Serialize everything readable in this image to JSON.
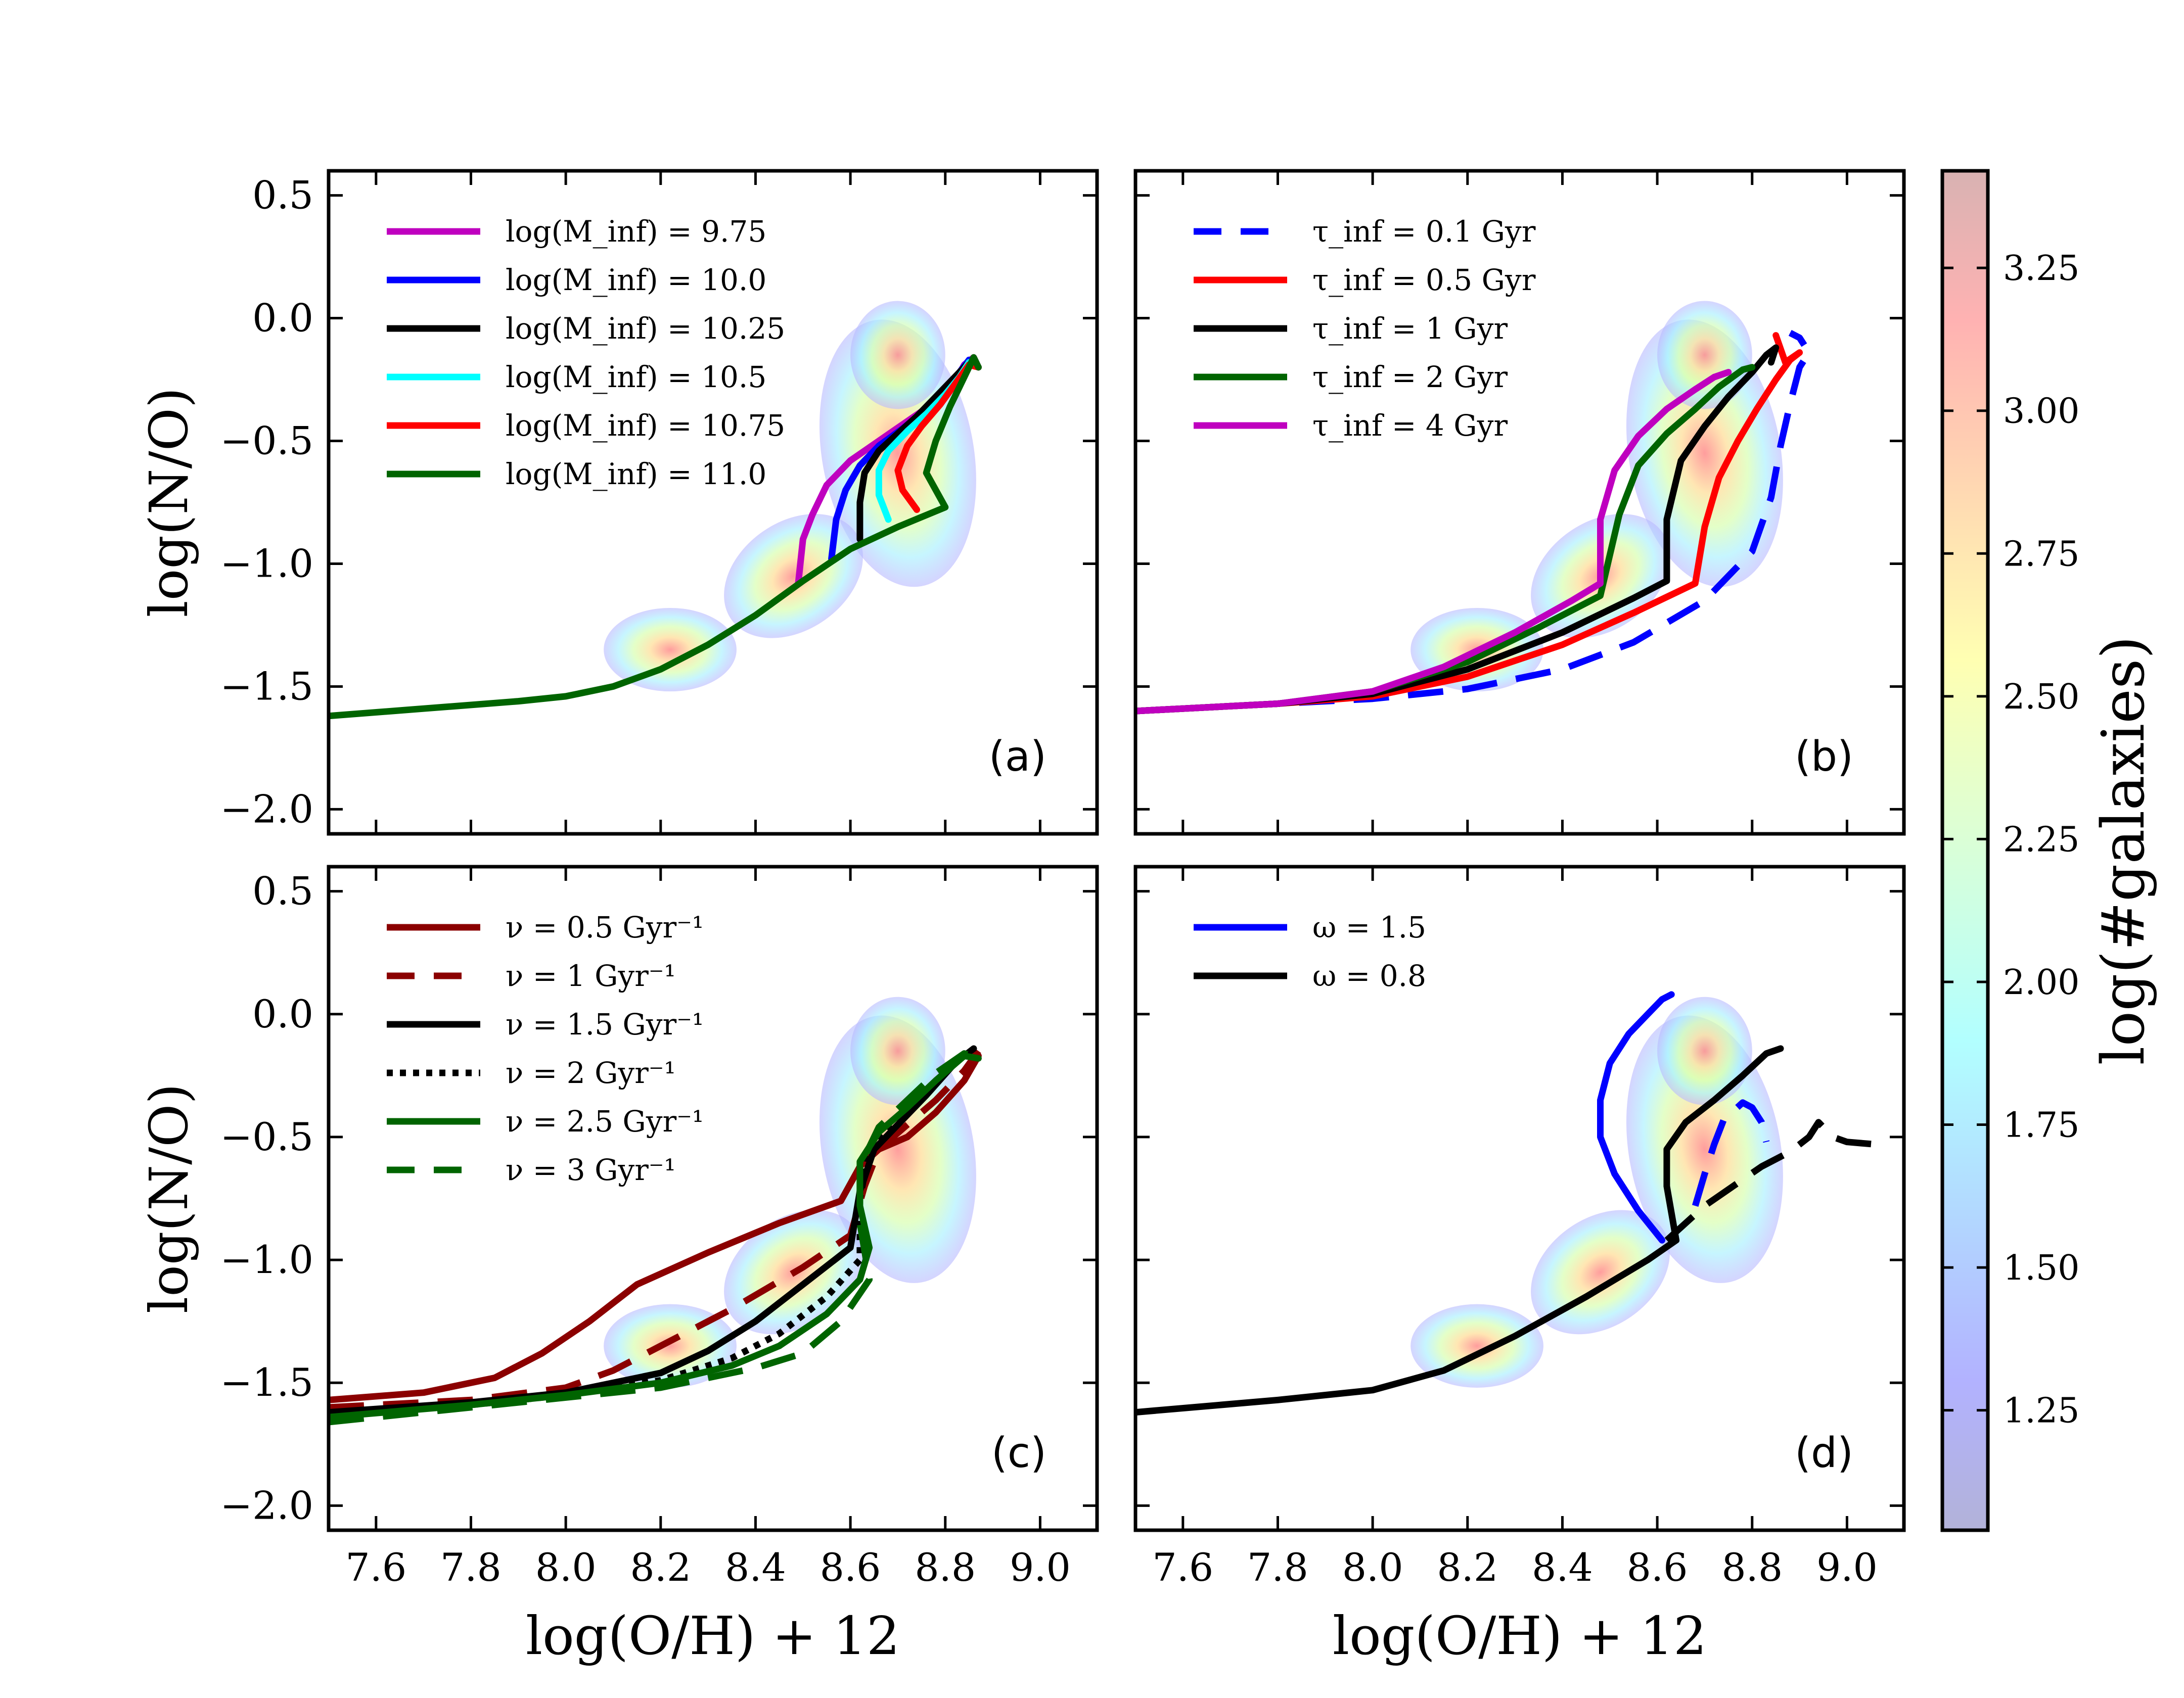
{
  "chart_data": [
    {
      "type": "line",
      "panel_label": "(a)",
      "xlabel": "",
      "ylabel": "log(N/O)",
      "xlim": [
        7.5,
        9.12
      ],
      "ylim": [
        -2.1,
        0.6
      ],
      "yticks": [
        "0.5",
        "0.0",
        "−0.5",
        "−1.0",
        "−1.5",
        "−2.0"
      ],
      "xticks": [],
      "legend_position": "top-left",
      "series": [
        {
          "name": "log(M_inf) = 9.75",
          "color": "#bf00bf",
          "style": "solid",
          "x": [
            8.49,
            8.5,
            8.52,
            8.55,
            8.6,
            8.66,
            8.72,
            8.78,
            8.82,
            8.84,
            8.86,
            8.87
          ],
          "y": [
            -1.08,
            -0.9,
            -0.8,
            -0.68,
            -0.58,
            -0.5,
            -0.42,
            -0.34,
            -0.26,
            -0.19,
            -0.16,
            -0.2
          ]
        },
        {
          "name": "log(M_inf) = 10.0",
          "color": "#0000ff",
          "style": "solid",
          "x": [
            8.56,
            8.57,
            8.59,
            8.62,
            8.66,
            8.71,
            8.76,
            8.8,
            8.83,
            8.85,
            8.87
          ],
          "y": [
            -0.98,
            -0.82,
            -0.7,
            -0.6,
            -0.52,
            -0.45,
            -0.37,
            -0.29,
            -0.22,
            -0.17,
            -0.2
          ]
        },
        {
          "name": "log(M_inf) = 10.25",
          "color": "#000000",
          "style": "solid",
          "x": [
            8.62,
            8.62,
            8.63,
            8.66,
            8.7,
            8.74,
            8.78,
            8.82,
            8.85,
            8.87
          ],
          "y": [
            -0.9,
            -0.75,
            -0.63,
            -0.54,
            -0.47,
            -0.4,
            -0.32,
            -0.24,
            -0.18,
            -0.2
          ]
        },
        {
          "name": "log(M_inf) = 10.5",
          "color": "#00ffff",
          "style": "solid",
          "x": [
            8.68,
            8.66,
            8.66,
            8.68,
            8.72,
            8.76,
            8.8,
            8.83,
            8.85,
            8.87
          ],
          "y": [
            -0.82,
            -0.72,
            -0.62,
            -0.54,
            -0.46,
            -0.39,
            -0.31,
            -0.24,
            -0.18,
            -0.2
          ]
        },
        {
          "name": "log(M_inf) = 10.75",
          "color": "#ff0000",
          "style": "solid",
          "x": [
            8.74,
            8.71,
            8.7,
            8.72,
            8.75,
            8.79,
            8.82,
            8.85,
            8.87
          ],
          "y": [
            -0.78,
            -0.7,
            -0.62,
            -0.52,
            -0.44,
            -0.35,
            -0.27,
            -0.19,
            -0.2
          ]
        },
        {
          "name": "log(M_inf) = 11.0",
          "color": "#006400",
          "style": "solid",
          "x": [
            7.5,
            7.7,
            7.9,
            8.0,
            8.1,
            8.2,
            8.3,
            8.4,
            8.5,
            8.6,
            8.7,
            8.8,
            8.76,
            8.78,
            8.81,
            8.84,
            8.86,
            8.87
          ],
          "y": [
            -1.62,
            -1.59,
            -1.56,
            -1.54,
            -1.5,
            -1.43,
            -1.33,
            -1.21,
            -1.07,
            -0.94,
            -0.85,
            -0.77,
            -0.63,
            -0.5,
            -0.36,
            -0.24,
            -0.16,
            -0.2
          ]
        }
      ]
    },
    {
      "type": "line",
      "panel_label": "(b)",
      "xlabel": "",
      "ylabel": "",
      "xlim": [
        7.5,
        9.12
      ],
      "ylim": [
        -2.1,
        0.6
      ],
      "xticks": [],
      "yticks": [],
      "legend_position": "top-left",
      "series": [
        {
          "name": "τ_inf = 0.1 Gyr",
          "color": "#0000ff",
          "style": "dashed",
          "x": [
            7.5,
            7.8,
            8.0,
            8.2,
            8.4,
            8.55,
            8.7,
            8.8,
            8.84,
            8.86,
            8.88,
            8.9,
            8.92,
            8.9,
            8.88
          ],
          "y": [
            -1.6,
            -1.57,
            -1.55,
            -1.51,
            -1.43,
            -1.32,
            -1.15,
            -0.95,
            -0.73,
            -0.52,
            -0.35,
            -0.2,
            -0.14,
            -0.08,
            -0.06
          ]
        },
        {
          "name": "τ_inf = 0.5 Gyr",
          "color": "#ff0000",
          "style": "solid",
          "x": [
            7.5,
            7.8,
            8.0,
            8.2,
            8.4,
            8.55,
            8.68,
            8.7,
            8.73,
            8.77,
            8.81,
            8.85,
            8.88,
            8.9,
            8.87,
            8.85
          ],
          "y": [
            -1.6,
            -1.57,
            -1.54,
            -1.46,
            -1.33,
            -1.2,
            -1.08,
            -0.85,
            -0.65,
            -0.5,
            -0.37,
            -0.25,
            -0.17,
            -0.14,
            -0.18,
            -0.07
          ]
        },
        {
          "name": "τ_inf = 1 Gyr",
          "color": "#000000",
          "style": "solid",
          "x": [
            7.5,
            7.8,
            8.0,
            8.2,
            8.4,
            8.55,
            8.62,
            8.62,
            8.65,
            8.7,
            8.75,
            8.8,
            8.83,
            8.85,
            8.84
          ],
          "y": [
            -1.6,
            -1.57,
            -1.53,
            -1.43,
            -1.28,
            -1.14,
            -1.07,
            -0.82,
            -0.58,
            -0.44,
            -0.32,
            -0.22,
            -0.15,
            -0.12,
            -0.18
          ]
        },
        {
          "name": "τ_inf = 2 Gyr",
          "color": "#006400",
          "style": "solid",
          "x": [
            7.5,
            7.8,
            8.0,
            8.2,
            8.35,
            8.48,
            8.52,
            8.56,
            8.62,
            8.68,
            8.73,
            8.78,
            8.8
          ],
          "y": [
            -1.6,
            -1.57,
            -1.52,
            -1.4,
            -1.26,
            -1.13,
            -0.8,
            -0.6,
            -0.47,
            -0.37,
            -0.28,
            -0.21,
            -0.2
          ]
        },
        {
          "name": "τ_inf = 4 Gyr",
          "color": "#bf00bf",
          "style": "solid",
          "x": [
            7.5,
            7.8,
            8.0,
            8.15,
            8.3,
            8.42,
            8.48,
            8.48,
            8.51,
            8.56,
            8.62,
            8.68,
            8.72,
            8.75
          ],
          "y": [
            -1.6,
            -1.57,
            -1.52,
            -1.42,
            -1.28,
            -1.15,
            -1.08,
            -0.82,
            -0.62,
            -0.48,
            -0.37,
            -0.29,
            -0.24,
            -0.22
          ]
        }
      ]
    },
    {
      "type": "line",
      "panel_label": "(c)",
      "xlabel": "log(O/H) + 12",
      "ylabel": "log(N/O)",
      "xlim": [
        7.5,
        9.12
      ],
      "ylim": [
        -2.1,
        0.6
      ],
      "xticks": [
        "7.6",
        "7.8",
        "8.0",
        "8.2",
        "8.4",
        "8.6",
        "8.8",
        "9.0"
      ],
      "yticks": [
        "0.5",
        "0.0",
        "−0.5",
        "−1.0",
        "−1.5",
        "−2.0"
      ],
      "legend_position": "top-left",
      "series": [
        {
          "name": "ν = 0.5 Gyr⁻¹",
          "color": "#8b0000",
          "style": "solid",
          "x": [
            7.5,
            7.7,
            7.85,
            7.95,
            8.05,
            8.15,
            8.3,
            8.45,
            8.58,
            8.62,
            8.66,
            8.72,
            8.78,
            8.84,
            8.87
          ],
          "y": [
            -1.57,
            -1.54,
            -1.48,
            -1.38,
            -1.25,
            -1.1,
            -0.97,
            -0.85,
            -0.76,
            -0.62,
            -0.55,
            -0.5,
            -0.4,
            -0.27,
            -0.17
          ]
        },
        {
          "name": "ν = 1 Gyr⁻¹",
          "color": "#8b0000",
          "style": "dashed",
          "x": [
            7.5,
            7.8,
            8.0,
            8.1,
            8.2,
            8.35,
            8.5,
            8.6,
            8.63,
            8.66,
            8.72,
            8.78,
            8.84,
            8.87
          ],
          "y": [
            -1.6,
            -1.57,
            -1.52,
            -1.45,
            -1.35,
            -1.2,
            -1.03,
            -0.9,
            -0.7,
            -0.55,
            -0.45,
            -0.35,
            -0.23,
            -0.15
          ]
        },
        {
          "name": "ν = 1.5 Gyr⁻¹",
          "color": "#000000",
          "style": "solid",
          "x": [
            7.5,
            7.8,
            8.0,
            8.2,
            8.3,
            8.4,
            8.5,
            8.6,
            8.62,
            8.65,
            8.7,
            8.76,
            8.82,
            8.86
          ],
          "y": [
            -1.62,
            -1.58,
            -1.54,
            -1.46,
            -1.37,
            -1.25,
            -1.1,
            -0.95,
            -0.72,
            -0.55,
            -0.45,
            -0.33,
            -0.2,
            -0.14
          ]
        },
        {
          "name": "ν = 2 Gyr⁻¹",
          "color": "#000000",
          "style": "dotted",
          "x": [
            7.5,
            7.8,
            8.0,
            8.2,
            8.35,
            8.45,
            8.55,
            8.62,
            8.62,
            8.64,
            8.7,
            8.76,
            8.82,
            8.86
          ],
          "y": [
            -1.63,
            -1.59,
            -1.55,
            -1.49,
            -1.4,
            -1.3,
            -1.15,
            -1.0,
            -0.75,
            -0.55,
            -0.43,
            -0.32,
            -0.2,
            -0.14
          ]
        },
        {
          "name": "ν = 2.5 Gyr⁻¹",
          "color": "#006400",
          "style": "solid",
          "x": [
            7.5,
            7.8,
            8.0,
            8.2,
            8.35,
            8.45,
            8.55,
            8.62,
            8.64,
            8.62,
            8.62,
            8.66,
            8.72,
            8.78,
            8.84,
            8.87
          ],
          "y": [
            -1.64,
            -1.59,
            -1.55,
            -1.5,
            -1.43,
            -1.35,
            -1.22,
            -1.08,
            -0.95,
            -0.78,
            -0.6,
            -0.48,
            -0.38,
            -0.27,
            -0.17,
            -0.18
          ]
        },
        {
          "name": "ν = 3 Gyr⁻¹",
          "color": "#006400",
          "style": "dashed",
          "x": [
            7.5,
            7.8,
            8.0,
            8.2,
            8.4,
            8.5,
            8.58,
            8.64,
            8.62,
            8.62,
            8.66,
            8.72,
            8.78,
            8.84,
            8.87
          ],
          "y": [
            -1.66,
            -1.6,
            -1.56,
            -1.52,
            -1.44,
            -1.38,
            -1.25,
            -1.08,
            -0.85,
            -0.62,
            -0.46,
            -0.35,
            -0.24,
            -0.16,
            -0.18
          ]
        }
      ]
    },
    {
      "type": "line",
      "panel_label": "(d)",
      "xlabel": "log(O/H) + 12",
      "ylabel": "",
      "xlim": [
        7.5,
        9.12
      ],
      "ylim": [
        -2.1,
        0.6
      ],
      "xticks": [
        "7.6",
        "7.8",
        "8.0",
        "8.2",
        "8.4",
        "8.6",
        "8.8",
        "9.0"
      ],
      "yticks": [],
      "legend_position": "top-left",
      "series": [
        {
          "name": "ω = 1.5",
          "color": "#0000ff",
          "style": "solid",
          "x": [
            8.61,
            8.56,
            8.51,
            8.48,
            8.48,
            8.5,
            8.54,
            8.58,
            8.61,
            8.63
          ],
          "y": [
            -0.92,
            -0.8,
            -0.65,
            -0.5,
            -0.35,
            -0.2,
            -0.08,
            0.0,
            0.06,
            0.08
          ]
        },
        {
          "name": "",
          "color": "#0000ff",
          "style": "dashed",
          "x": [
            8.68,
            8.7,
            8.72,
            8.74,
            8.78,
            8.8,
            8.82,
            8.83
          ],
          "y": [
            -0.78,
            -0.65,
            -0.53,
            -0.43,
            -0.36,
            -0.38,
            -0.44,
            -0.52
          ]
        },
        {
          "name": "ω = 0.8",
          "color": "#000000",
          "style": "solid",
          "x": [
            7.5,
            7.8,
            8.0,
            8.15,
            8.3,
            8.45,
            8.58,
            8.64,
            8.62,
            8.62,
            8.66,
            8.72,
            8.78,
            8.83,
            8.86
          ],
          "y": [
            -1.62,
            -1.57,
            -1.53,
            -1.45,
            -1.31,
            -1.15,
            -1.0,
            -0.92,
            -0.7,
            -0.55,
            -0.44,
            -0.35,
            -0.25,
            -0.16,
            -0.14
          ]
        },
        {
          "name": "",
          "color": "#000000",
          "style": "dashed",
          "x": [
            8.62,
            8.7,
            8.76,
            8.82,
            8.88,
            8.92,
            8.94,
            8.97,
            9.0,
            9.06
          ],
          "y": [
            -0.92,
            -0.78,
            -0.7,
            -0.62,
            -0.56,
            -0.5,
            -0.44,
            -0.5,
            -0.52,
            -0.53
          ]
        }
      ]
    }
  ],
  "colorbar": {
    "label": "log(#galaxies)",
    "range": [
      1.04,
      3.42
    ],
    "ticks": [
      "1.25",
      "1.50",
      "1.75",
      "2.00",
      "2.25",
      "2.50",
      "2.75",
      "3.00",
      "3.25"
    ],
    "tick_values": [
      1.25,
      1.5,
      1.75,
      2.0,
      2.25,
      2.5,
      2.75,
      3.0,
      3.25
    ],
    "colormap": "jet (alpha 0.3)"
  },
  "density_shading": "2D histogram of galaxies in log(O/H)+12 vs log(N/O) plane shown in all four panels"
}
